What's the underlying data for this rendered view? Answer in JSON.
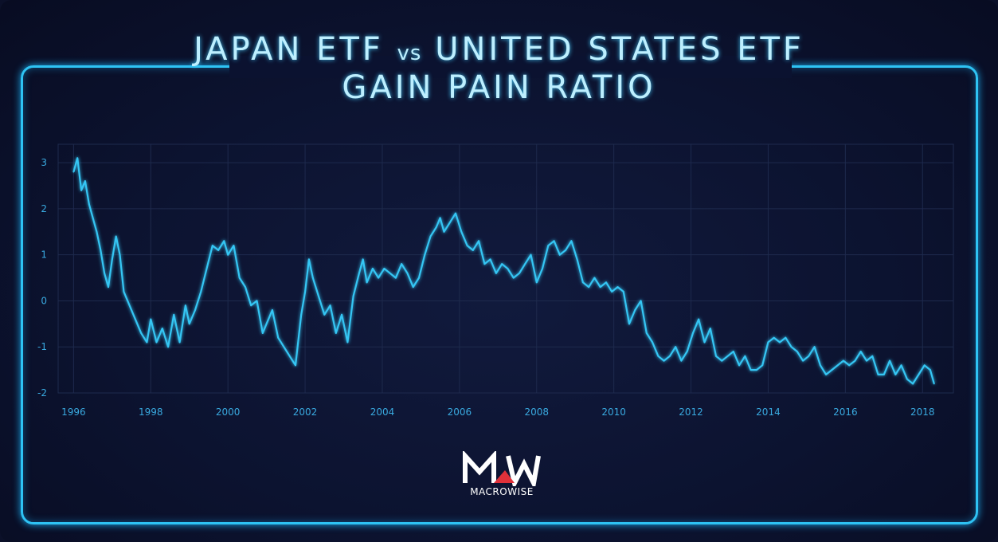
{
  "title": {
    "line1_left": "JAPAN ETF",
    "vs": "vs",
    "line1_right": "UNITED STATES ETF",
    "line2": "GAIN PAIN RATIO"
  },
  "logo": {
    "mark": "MW",
    "text": "MACROWISE"
  },
  "colors": {
    "background": "#0b1029",
    "frame": "#2ec3f4",
    "line": "#34c6f4",
    "grid": "#1e2a4d",
    "tick_text": "#39a9df",
    "title_text": "#bdefff",
    "logo_accent": "#e0313a"
  },
  "chart_data": {
    "type": "line",
    "title": "JAPAN ETF vs UNITED STATES ETF GAIN PAIN RATIO",
    "xlabel": "",
    "ylabel": "",
    "xlim": [
      1995.6,
      2018.8
    ],
    "ylim": [
      -2,
      3.4
    ],
    "x_ticks": [
      1996,
      1998,
      2000,
      2002,
      2004,
      2006,
      2008,
      2010,
      2012,
      2014,
      2016,
      2018
    ],
    "x_tick_labels": [
      "1996",
      "1998",
      "2000",
      "2002",
      "2004",
      "2006",
      "2008",
      "2010",
      "2012",
      "2014",
      "2016",
      "2018"
    ],
    "y_ticks": [
      -2,
      -1,
      0,
      1,
      2,
      3
    ],
    "y_tick_labels": [
      "-2",
      "-1",
      "0",
      "1",
      "2",
      "3"
    ],
    "grid": true,
    "legend": "none",
    "series": [
      {
        "values_x": [
          1996.0,
          1996.1,
          1996.2,
          1996.3,
          1996.4,
          1996.5,
          1996.6,
          1996.7,
          1996.8,
          1996.9,
          1997.0,
          1997.1,
          1997.2,
          1997.3,
          1997.45,
          1997.6,
          1997.75,
          1997.9,
          1998.0,
          1998.15,
          1998.3,
          1998.45,
          1998.6,
          1998.75,
          1998.9,
          1999.0,
          1999.15,
          1999.3,
          1999.45,
          1999.6,
          1999.75,
          1999.9,
          2000.0,
          2000.15,
          2000.3,
          2000.45,
          2000.6,
          2000.75,
          2000.9,
          2001.0,
          2001.15,
          2001.3,
          2001.45,
          2001.6,
          2001.75,
          2001.9,
          2002.0,
          2002.1,
          2002.2,
          2002.35,
          2002.5,
          2002.65,
          2002.8,
          2002.95,
          2003.1,
          2003.25,
          2003.4,
          2003.5,
          2003.6,
          2003.75,
          2003.9,
          2004.05,
          2004.2,
          2004.35,
          2004.5,
          2004.65,
          2004.8,
          2004.95,
          2005.1,
          2005.25,
          2005.4,
          2005.5,
          2005.6,
          2005.75,
          2005.9,
          2006.05,
          2006.2,
          2006.35,
          2006.5,
          2006.65,
          2006.8,
          2006.95,
          2007.1,
          2007.25,
          2007.4,
          2007.55,
          2007.7,
          2007.85,
          2008.0,
          2008.15,
          2008.3,
          2008.45,
          2008.6,
          2008.75,
          2008.9,
          2009.05,
          2009.2,
          2009.35,
          2009.5,
          2009.65,
          2009.8,
          2009.95,
          2010.1,
          2010.25,
          2010.4,
          2010.55,
          2010.7,
          2010.85,
          2011.0,
          2011.15,
          2011.3,
          2011.45,
          2011.6,
          2011.75,
          2011.9,
          2012.05,
          2012.2,
          2012.35,
          2012.5,
          2012.65,
          2012.8,
          2012.95,
          2013.1,
          2013.25,
          2013.4,
          2013.55,
          2013.7,
          2013.85,
          2014.0,
          2014.15,
          2014.3,
          2014.45,
          2014.6,
          2014.75,
          2014.9,
          2015.05,
          2015.2,
          2015.35,
          2015.5,
          2015.65,
          2015.8,
          2015.95,
          2016.1,
          2016.25,
          2016.4,
          2016.55,
          2016.7,
          2016.85,
          2017.0,
          2017.15,
          2017.3,
          2017.45,
          2017.6,
          2017.75,
          2017.9,
          2018.05,
          2018.2,
          2018.3
        ],
        "values_y": [
          2.8,
          3.1,
          2.4,
          2.6,
          2.1,
          1.8,
          1.5,
          1.1,
          0.6,
          0.3,
          0.9,
          1.4,
          1.0,
          0.2,
          -0.1,
          -0.4,
          -0.7,
          -0.9,
          -0.4,
          -0.9,
          -0.6,
          -1.0,
          -0.3,
          -0.9,
          -0.1,
          -0.5,
          -0.2,
          0.2,
          0.7,
          1.2,
          1.1,
          1.3,
          1.0,
          1.2,
          0.5,
          0.3,
          -0.1,
          0.0,
          -0.7,
          -0.5,
          -0.2,
          -0.8,
          -1.0,
          -1.2,
          -1.4,
          -0.3,
          0.2,
          0.9,
          0.5,
          0.1,
          -0.3,
          -0.1,
          -0.7,
          -0.3,
          -0.9,
          0.1,
          0.6,
          0.9,
          0.4,
          0.7,
          0.5,
          0.7,
          0.6,
          0.5,
          0.8,
          0.6,
          0.3,
          0.5,
          1.0,
          1.4,
          1.6,
          1.8,
          1.5,
          1.7,
          1.9,
          1.5,
          1.2,
          1.1,
          1.3,
          0.8,
          0.9,
          0.6,
          0.8,
          0.7,
          0.5,
          0.6,
          0.8,
          1.0,
          0.4,
          0.7,
          1.2,
          1.3,
          1.0,
          1.1,
          1.3,
          0.9,
          0.4,
          0.3,
          0.5,
          0.3,
          0.4,
          0.2,
          0.3,
          0.2,
          -0.5,
          -0.2,
          0.0,
          -0.7,
          -0.9,
          -1.2,
          -1.3,
          -1.2,
          -1.0,
          -1.3,
          -1.1,
          -0.7,
          -0.4,
          -0.9,
          -0.6,
          -1.2,
          -1.3,
          -1.2,
          -1.1,
          -1.4,
          -1.2,
          -1.5,
          -1.5,
          -1.4,
          -0.9,
          -0.8,
          -0.9,
          -0.8,
          -1.0,
          -1.1,
          -1.3,
          -1.2,
          -1.0,
          -1.4,
          -1.6,
          -1.5,
          -1.4,
          -1.3,
          -1.4,
          -1.3,
          -1.1,
          -1.3,
          -1.2,
          -1.6,
          -1.6,
          -1.3,
          -1.6,
          -1.4,
          -1.7,
          -1.8,
          -1.6,
          -1.4,
          -1.5,
          -1.8
        ]
      }
    ]
  }
}
